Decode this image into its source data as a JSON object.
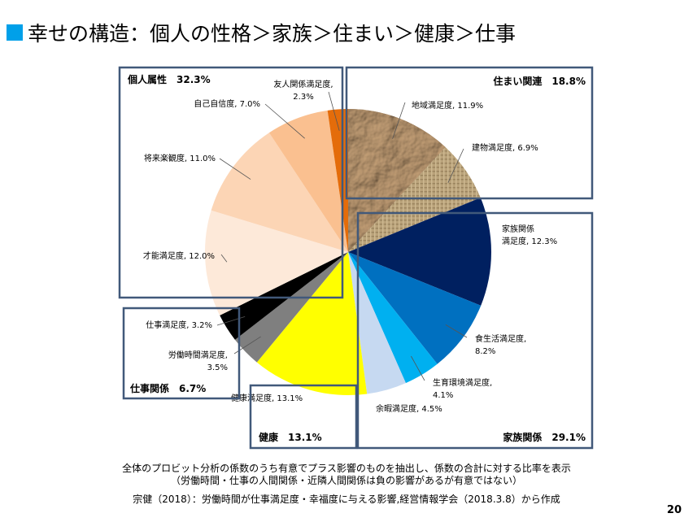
{
  "title": "幸せの構造：個人の性格＞家族＞住まい＞健康＞仕事",
  "colors": {
    "bullet": "#00a0e9",
    "frame": "#41597a"
  },
  "chart_data": {
    "type": "pie",
    "title": "幸せの構造：個人の性格＞家族＞住まい＞健康＞仕事",
    "start": "12 o'clock, clockwise",
    "slices": [
      {
        "name": "住まい関連",
        "label": "地域満足度",
        "value": 11.9,
        "color": "#8b6a4a",
        "texture": "crumpled-paper"
      },
      {
        "name": "住まい関連",
        "label": "建物満足度",
        "value": 6.9,
        "color": "#b39b72",
        "texture": "burlap"
      },
      {
        "name": "家族関係",
        "label": "家族関係満足度",
        "value": 12.3,
        "color": "#002060"
      },
      {
        "name": "家族関係",
        "label": "食生活満足度",
        "value": 8.2,
        "color": "#0070c0"
      },
      {
        "name": "家族関係",
        "label": "生育環境満足度",
        "value": 4.1,
        "color": "#00b0f0"
      },
      {
        "name": "家族関係",
        "label": "余暇満足度",
        "value": 4.5,
        "color": "#c6d9f1"
      },
      {
        "name": "健康",
        "label": "健康満足度",
        "value": 13.1,
        "color": "#ffff00"
      },
      {
        "name": "仕事関係",
        "label": "労働時間満足度",
        "value": 3.5,
        "color": "#7f7f7f"
      },
      {
        "name": "仕事関係",
        "label": "仕事満足度",
        "value": 3.2,
        "color": "#000000"
      },
      {
        "name": "個人属性",
        "label": "才能満足度",
        "value": 12.0,
        "color": "#fde9d9"
      },
      {
        "name": "個人属性",
        "label": "将来楽観度",
        "value": 11.0,
        "color": "#fcd5b5"
      },
      {
        "name": "個人属性",
        "label": "自己自信度",
        "value": 7.0,
        "color": "#fac090"
      },
      {
        "name": "個人属性",
        "label": "友人関係満足度",
        "value": 2.3,
        "color": "#e46c0a"
      }
    ],
    "slice_labels": [
      {
        "lines": [
          "地域満足度, 11.9%"
        ]
      },
      {
        "lines": [
          "建物満足度, 6.9%"
        ]
      },
      {
        "lines": [
          "家族関係",
          "満足度, 12.3%"
        ]
      },
      {
        "lines": [
          "食生活満足度,",
          "8.2%"
        ]
      },
      {
        "lines": [
          "生育環境満足度,",
          "4.1%"
        ]
      },
      {
        "lines": [
          "余暇満足度, 4.5%"
        ]
      },
      {
        "lines": [
          "健康満足度, 13.1%"
        ]
      },
      {
        "lines": [
          "労働時間満足度,",
          "3.5%"
        ]
      },
      {
        "lines": [
          "仕事満足度, 3.2%"
        ]
      },
      {
        "lines": [
          "才能満足度, 12.0%"
        ]
      },
      {
        "lines": [
          "将来楽観度, 11.0%"
        ]
      },
      {
        "lines": [
          "自己自信度, 7.0%"
        ]
      },
      {
        "lines": [
          "友人関係満足度,",
          "2.3%"
        ]
      }
    ],
    "groups": [
      {
        "name": "住まい関連",
        "label": "住まい関連　18.8%",
        "total": 18.8
      },
      {
        "name": "家族関係",
        "label": "家族関係　29.1%",
        "total": 29.1
      },
      {
        "name": "健康",
        "label": "健康　13.1%",
        "total": 13.1
      },
      {
        "name": "仕事関係",
        "label": "仕事関係　6.7%",
        "total": 6.7
      },
      {
        "name": "個人属性",
        "label": "個人属性　32.3%",
        "total": 32.3
      }
    ]
  },
  "footnotes": {
    "line1": "全体のプロビット分析の係数のうち有意でプラス影響のものを抽出し、係数の合計に対する比率を表示",
    "line2": "（労働時間・仕事の人間関係・近隣人間関係は負の影響があるが有意ではない）",
    "source": "宗健（2018）：労働時間が仕事満足度・幸福度に与える影響,経営情報学会（2018.3.8）から作成"
  },
  "page_number": "20"
}
